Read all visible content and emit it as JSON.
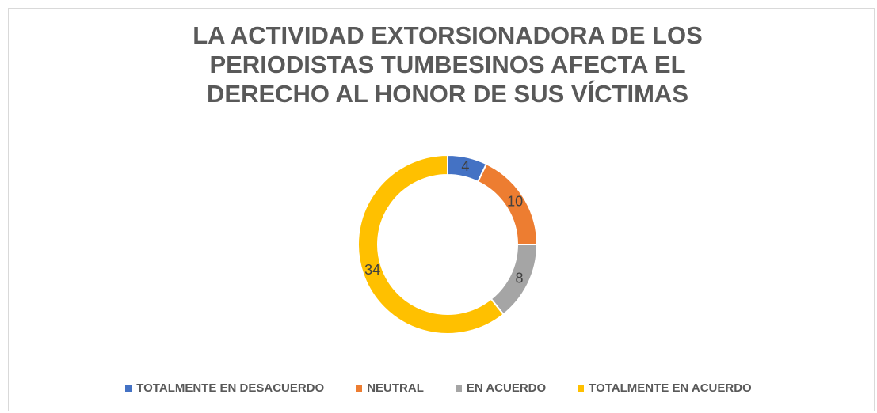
{
  "chart_data": {
    "type": "donut",
    "title": "LA ACTIVIDAD EXTORSIONADORA DE LOS PERIODISTAS TUMBESINOS AFECTA EL DERECHO AL HONOR DE SUS VÍCTIMAS",
    "categories": [
      "TOTALMENTE EN DESACUERDO",
      "NEUTRAL",
      "EN ACUERDO",
      "TOTALMENTE EN ACUERDO"
    ],
    "values": [
      4,
      10,
      8,
      34
    ],
    "colors": [
      "#4472c4",
      "#ed7d31",
      "#a5a5a5",
      "#ffc000"
    ],
    "legend": "bottom"
  }
}
